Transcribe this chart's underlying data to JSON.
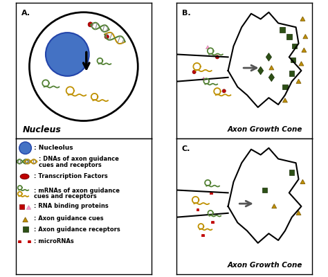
{
  "panel_A_label": "A.",
  "panel_B_label": "B.",
  "panel_C_label": "C.",
  "nucleus_label": "Nucleus",
  "axon_B_label": "Axon Growth Cone",
  "axon_C_label": "Axon Growth Cone",
  "bg_color": "#FFFFFF",
  "nucleus_blue": "#4472C4",
  "dna_green": "#548235",
  "dna_gold": "#BF9000",
  "mrna_green": "#548235",
  "mrna_gold": "#BF9000",
  "tf_red": "#C00000",
  "rbp_pink": "#FF99CC",
  "axon_cue_gold": "#BF9000",
  "axon_rec_green": "#2D5016",
  "mirna_red": "#C00000",
  "arrow_gray": "#555555"
}
